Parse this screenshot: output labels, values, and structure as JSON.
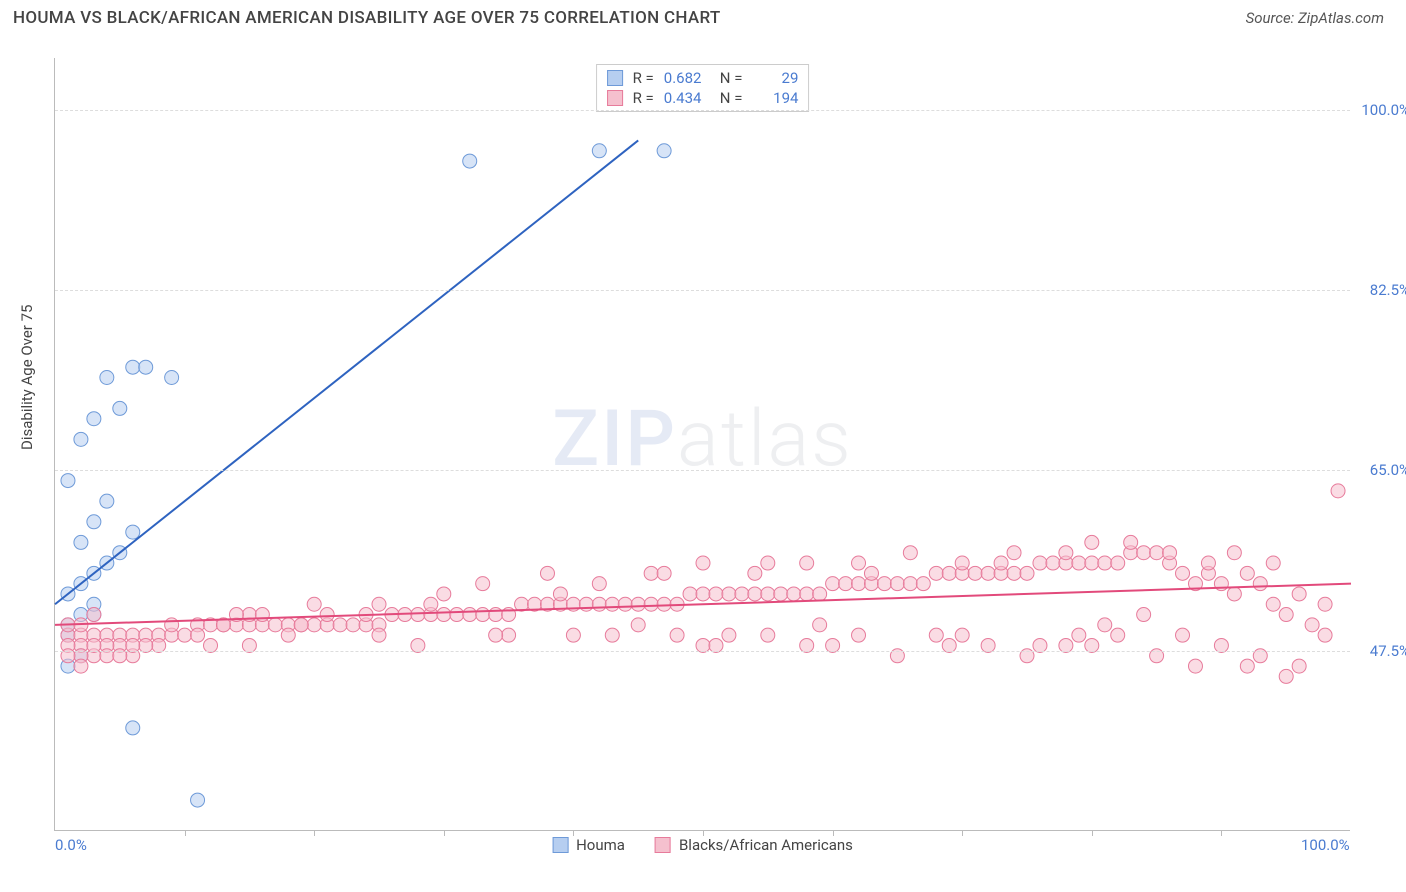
{
  "header": {
    "title": "HOUMA VS BLACK/AFRICAN AMERICAN DISABILITY AGE OVER 75 CORRELATION CHART",
    "source": "Source: ZipAtlas.com"
  },
  "chart": {
    "type": "scatter",
    "ylabel": "Disability Age Over 75",
    "xlim": [
      0,
      100
    ],
    "ylim": [
      30,
      105
    ],
    "xtick_labels": [
      "0.0%",
      "100.0%"
    ],
    "xtick_positions": [
      0,
      100
    ],
    "xtick_minor": [
      10,
      20,
      30,
      40,
      50,
      60,
      70,
      80,
      90
    ],
    "ytick_labels": [
      "47.5%",
      "65.0%",
      "82.5%",
      "100.0%"
    ],
    "ytick_positions": [
      47.5,
      65.0,
      82.5,
      100.0
    ],
    "background_color": "#ffffff",
    "grid_color": "#dddddd",
    "axis_color": "#bbbbbb",
    "marker_radius": 7,
    "marker_opacity": 0.55,
    "watermark": "ZIPatlas",
    "series": [
      {
        "name": "Houma",
        "color_fill": "#b6cef0",
        "color_stroke": "#6e9ad8",
        "line_color": "#2e63c0",
        "trend": {
          "x1": 0,
          "y1": 52,
          "x2": 45,
          "y2": 97
        },
        "points": [
          [
            1,
            50
          ],
          [
            2,
            51
          ],
          [
            3,
            51
          ],
          [
            1,
            53
          ],
          [
            2,
            54
          ],
          [
            3,
            55
          ],
          [
            4,
            56
          ],
          [
            5,
            57
          ],
          [
            2,
            58
          ],
          [
            3,
            60
          ],
          [
            4,
            62
          ],
          [
            6,
            59
          ],
          [
            1,
            64
          ],
          [
            2,
            68
          ],
          [
            3,
            70
          ],
          [
            5,
            71
          ],
          [
            4,
            74
          ],
          [
            6,
            75
          ],
          [
            7,
            75
          ],
          [
            9,
            74
          ],
          [
            1,
            46
          ],
          [
            2,
            47
          ],
          [
            6,
            40
          ],
          [
            11,
            33
          ],
          [
            32,
            95
          ],
          [
            42,
            96
          ],
          [
            47,
            96
          ],
          [
            1,
            49
          ],
          [
            3,
            52
          ]
        ]
      },
      {
        "name": "Blacks/African Americans",
        "color_fill": "#f5c0ce",
        "color_stroke": "#e77b9b",
        "line_color": "#e24a7b",
        "trend": {
          "x1": 0,
          "y1": 50,
          "x2": 100,
          "y2": 54
        },
        "points": [
          [
            1,
            49
          ],
          [
            2,
            49
          ],
          [
            3,
            49
          ],
          [
            4,
            49
          ],
          [
            5,
            49
          ],
          [
            6,
            49
          ],
          [
            7,
            49
          ],
          [
            8,
            49
          ],
          [
            9,
            49
          ],
          [
            10,
            49
          ],
          [
            11,
            50
          ],
          [
            12,
            50
          ],
          [
            13,
            50
          ],
          [
            14,
            50
          ],
          [
            15,
            50
          ],
          [
            16,
            50
          ],
          [
            17,
            50
          ],
          [
            18,
            50
          ],
          [
            19,
            50
          ],
          [
            20,
            50
          ],
          [
            21,
            50
          ],
          [
            22,
            50
          ],
          [
            23,
            50
          ],
          [
            24,
            50
          ],
          [
            25,
            50
          ],
          [
            26,
            51
          ],
          [
            27,
            51
          ],
          [
            28,
            51
          ],
          [
            29,
            51
          ],
          [
            30,
            51
          ],
          [
            31,
            51
          ],
          [
            32,
            51
          ],
          [
            33,
            51
          ],
          [
            34,
            51
          ],
          [
            35,
            51
          ],
          [
            36,
            52
          ],
          [
            37,
            52
          ],
          [
            38,
            52
          ],
          [
            39,
            52
          ],
          [
            40,
            52
          ],
          [
            41,
            52
          ],
          [
            42,
            52
          ],
          [
            43,
            52
          ],
          [
            44,
            52
          ],
          [
            45,
            52
          ],
          [
            46,
            52
          ],
          [
            47,
            52
          ],
          [
            48,
            52
          ],
          [
            49,
            53
          ],
          [
            50,
            53
          ],
          [
            51,
            53
          ],
          [
            52,
            53
          ],
          [
            53,
            53
          ],
          [
            54,
            53
          ],
          [
            55,
            53
          ],
          [
            56,
            53
          ],
          [
            57,
            53
          ],
          [
            58,
            53
          ],
          [
            59,
            53
          ],
          [
            60,
            54
          ],
          [
            61,
            54
          ],
          [
            62,
            54
          ],
          [
            63,
            54
          ],
          [
            64,
            54
          ],
          [
            65,
            54
          ],
          [
            66,
            54
          ],
          [
            67,
            54
          ],
          [
            68,
            55
          ],
          [
            69,
            55
          ],
          [
            70,
            55
          ],
          [
            71,
            55
          ],
          [
            72,
            55
          ],
          [
            73,
            55
          ],
          [
            74,
            55
          ],
          [
            75,
            55
          ],
          [
            76,
            56
          ],
          [
            77,
            56
          ],
          [
            78,
            56
          ],
          [
            79,
            56
          ],
          [
            80,
            56
          ],
          [
            81,
            56
          ],
          [
            82,
            56
          ],
          [
            83,
            57
          ],
          [
            84,
            57
          ],
          [
            85,
            57
          ],
          [
            86,
            56
          ],
          [
            87,
            55
          ],
          [
            88,
            54
          ],
          [
            89,
            55
          ],
          [
            90,
            54
          ],
          [
            91,
            53
          ],
          [
            92,
            55
          ],
          [
            93,
            54
          ],
          [
            94,
            52
          ],
          [
            95,
            51
          ],
          [
            96,
            53
          ],
          [
            97,
            50
          ],
          [
            98,
            52
          ],
          [
            99,
            63
          ],
          [
            98,
            49
          ],
          [
            5,
            48
          ],
          [
            8,
            48
          ],
          [
            12,
            48
          ],
          [
            15,
            48
          ],
          [
            18,
            49
          ],
          [
            25,
            49
          ],
          [
            28,
            48
          ],
          [
            35,
            49
          ],
          [
            40,
            49
          ],
          [
            45,
            50
          ],
          [
            50,
            48
          ],
          [
            55,
            49
          ],
          [
            60,
            48
          ],
          [
            65,
            47
          ],
          [
            70,
            49
          ],
          [
            75,
            47
          ],
          [
            80,
            48
          ],
          [
            85,
            47
          ],
          [
            88,
            46
          ],
          [
            92,
            46
          ],
          [
            95,
            45
          ],
          [
            90,
            48
          ],
          [
            82,
            49
          ],
          [
            78,
            48
          ],
          [
            72,
            48
          ],
          [
            68,
            49
          ],
          [
            62,
            49
          ],
          [
            58,
            48
          ],
          [
            52,
            49
          ],
          [
            48,
            49
          ],
          [
            15,
            51
          ],
          [
            20,
            52
          ],
          [
            25,
            52
          ],
          [
            30,
            53
          ],
          [
            33,
            54
          ],
          [
            38,
            55
          ],
          [
            42,
            54
          ],
          [
            46,
            55
          ],
          [
            50,
            56
          ],
          [
            54,
            55
          ],
          [
            58,
            56
          ],
          [
            62,
            56
          ],
          [
            66,
            57
          ],
          [
            70,
            56
          ],
          [
            74,
            57
          ],
          [
            78,
            57
          ],
          [
            80,
            58
          ],
          [
            83,
            58
          ],
          [
            86,
            57
          ],
          [
            89,
            56
          ],
          [
            2,
            48
          ],
          [
            3,
            47
          ],
          [
            4,
            48
          ],
          [
            6,
            47
          ],
          [
            7,
            48
          ],
          [
            1,
            48
          ],
          [
            2,
            47
          ],
          [
            1,
            50
          ],
          [
            2,
            50
          ],
          [
            3,
            51
          ],
          [
            4,
            47
          ],
          [
            5,
            47
          ],
          [
            6,
            48
          ],
          [
            1,
            47
          ],
          [
            2,
            46
          ],
          [
            3,
            48
          ],
          [
            91,
            57
          ],
          [
            93,
            47
          ],
          [
            96,
            46
          ],
          [
            94,
            56
          ],
          [
            76,
            48
          ],
          [
            79,
            49
          ],
          [
            81,
            50
          ],
          [
            84,
            51
          ],
          [
            87,
            49
          ],
          [
            73,
            56
          ],
          [
            69,
            48
          ],
          [
            63,
            55
          ],
          [
            59,
            50
          ],
          [
            55,
            56
          ],
          [
            51,
            48
          ],
          [
            47,
            55
          ],
          [
            43,
            49
          ],
          [
            39,
            53
          ],
          [
            34,
            49
          ],
          [
            29,
            52
          ],
          [
            24,
            51
          ],
          [
            19,
            50
          ],
          [
            14,
            51
          ],
          [
            9,
            50
          ],
          [
            11,
            49
          ],
          [
            13,
            50
          ],
          [
            16,
            51
          ],
          [
            21,
            51
          ]
        ]
      }
    ],
    "legend_top": {
      "rows": [
        {
          "swatch_fill": "#b6cef0",
          "swatch_stroke": "#6e9ad8",
          "r_label": "R =",
          "r_value": "0.682",
          "n_label": "N =",
          "n_value": "29"
        },
        {
          "swatch_fill": "#f5c0ce",
          "swatch_stroke": "#e77b9b",
          "r_label": "R =",
          "r_value": "0.434",
          "n_label": "N =",
          "n_value": "194"
        }
      ]
    },
    "legend_bottom": [
      {
        "swatch_fill": "#b6cef0",
        "swatch_stroke": "#6e9ad8",
        "label": "Houma"
      },
      {
        "swatch_fill": "#f5c0ce",
        "swatch_stroke": "#e77b9b",
        "label": "Blacks/African Americans"
      }
    ]
  }
}
